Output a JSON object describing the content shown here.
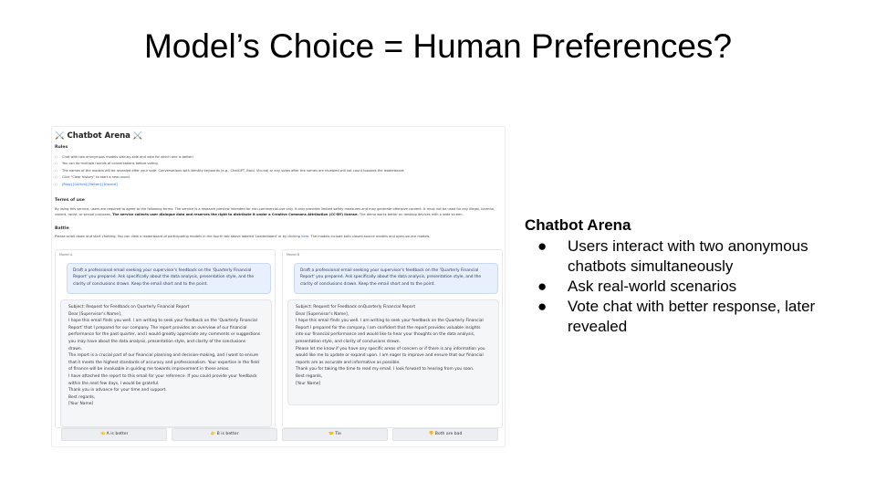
{
  "slide": {
    "title": "Model’s Choice = Human Preferences?"
  },
  "screenshot": {
    "arena_title": "⚔️ Chatbot Arena ⚔️",
    "rules_heading": "Rules",
    "rules": [
      "Chat with two anonymous models side-by-side and vote for which one is better!",
      "You can do multiple rounds of conversations before voting.",
      "The names of the models will be revealed after your vote. Conversations with identity keywords (e.g., ChatGPT, Bard, Vicuna) or any votes after the names are revealed will not count towards the leaderboard.",
      "Click \"Clear history\" to start a new round."
    ],
    "links": "[Blog] [GitHub] [Twitter] [Discord]",
    "terms_heading": "Terms of use",
    "terms_text": "By using this service, users are required to agree to the following terms: The service is a research preview intended for non-commercial use only. It only provides limited safety measures and may generate offensive content. It must not be used for any illegal, harmful, violent, racist, or sexual purposes.",
    "terms_bold": "The service collects user dialogue data and reserves the right to distribute it under a Creative Commons Attribution (CC-BY) license.",
    "terms_tail": "The demo works better on desktop devices with a wide screen.",
    "battle_heading": "Battle",
    "battle_text": "Please scroll down and start chatting. You can view a leaderboard of participating models in the fourth tab above labeled 'Leaderboard' or by clicking",
    "battle_link": "here",
    "battle_tail": ". The models include both closed-source models and open-source models.",
    "model_a": {
      "tag": "Model A",
      "prompt": "Draft a professional email seeking your supervisor's feedback on the 'Quarterly Financial Report' you prepared. Ask specifically about the data analysis, presentation style, and the clarity of conclusions drawn. Keep the email short and to the point.",
      "response": [
        "Subject: Request for Feedback on Quarterly Financial Report",
        "Dear [Supervisor's Name],",
        "I hope this email finds you well. I am writing to seek your feedback on the 'Quarterly Financial",
        "Report' that I prepared for our company. The report provides an overview of our financial",
        "performance for the past quarter, and I would greatly appreciate any comments or suggestions",
        "you may have about the data analysis, presentation style, and clarity of the conclusions",
        "drawn.",
        "The report is a crucial part of our financial planning and decision-making, and I want to ensure",
        "that it meets the highest standards of accuracy and professionalism. Your expertise in the field",
        "of finance will be invaluable in guiding me towards improvement in these areas.",
        "I have attached the report to this email for your reference. If you could provide your feedback",
        "within the next few days, I would be grateful.",
        "Thank you in advance for your time and support.",
        "Best regards,",
        "[Your Name]"
      ]
    },
    "model_b": {
      "tag": "Model B",
      "prompt": "Draft a professional email seeking your supervisor's feedback on the 'Quarterly Financial Report' you prepared. Ask specifically about the data analysis, presentation style, and the clarity of conclusions drawn. Keep the email short and to the point.",
      "response": [
        "Subject: Request for Feedback onQuarterly Financial Report",
        "Dear [Supervisor's Name],",
        "I hope this email finds you well. I am writing to seek your feedback on the Quarterly Financial",
        "Report I prepared for the company. I am confident that the report provides valuable insights",
        "into our financial performance and would like to hear your thoughts on the data analysis,",
        "presentation style, and clarity of conclusions drawn.",
        "Please let me know if you have any specific areas of concern or if there is any information you",
        "would like me to update or expand upon. I am eager to improve and ensure that our financial",
        "reports are as accurate and informative as possible.",
        "Thank you for taking the time to read my email. I look forward to hearing from you soon.",
        "Best regards,",
        "[Your Name]"
      ]
    },
    "votes": {
      "a_better": "👈 A is better",
      "b_better": "👉 B is better",
      "tie": "🤝 Tie",
      "both_bad": "👎 Both are bad"
    }
  },
  "panel": {
    "heading": "Chatbot Arena",
    "bullet_glyph": "●",
    "bullets": [
      "Users interact with two anonymous chatbots simultaneously",
      "Ask real-world scenarios",
      "Vote chat with better response, later revealed"
    ]
  }
}
